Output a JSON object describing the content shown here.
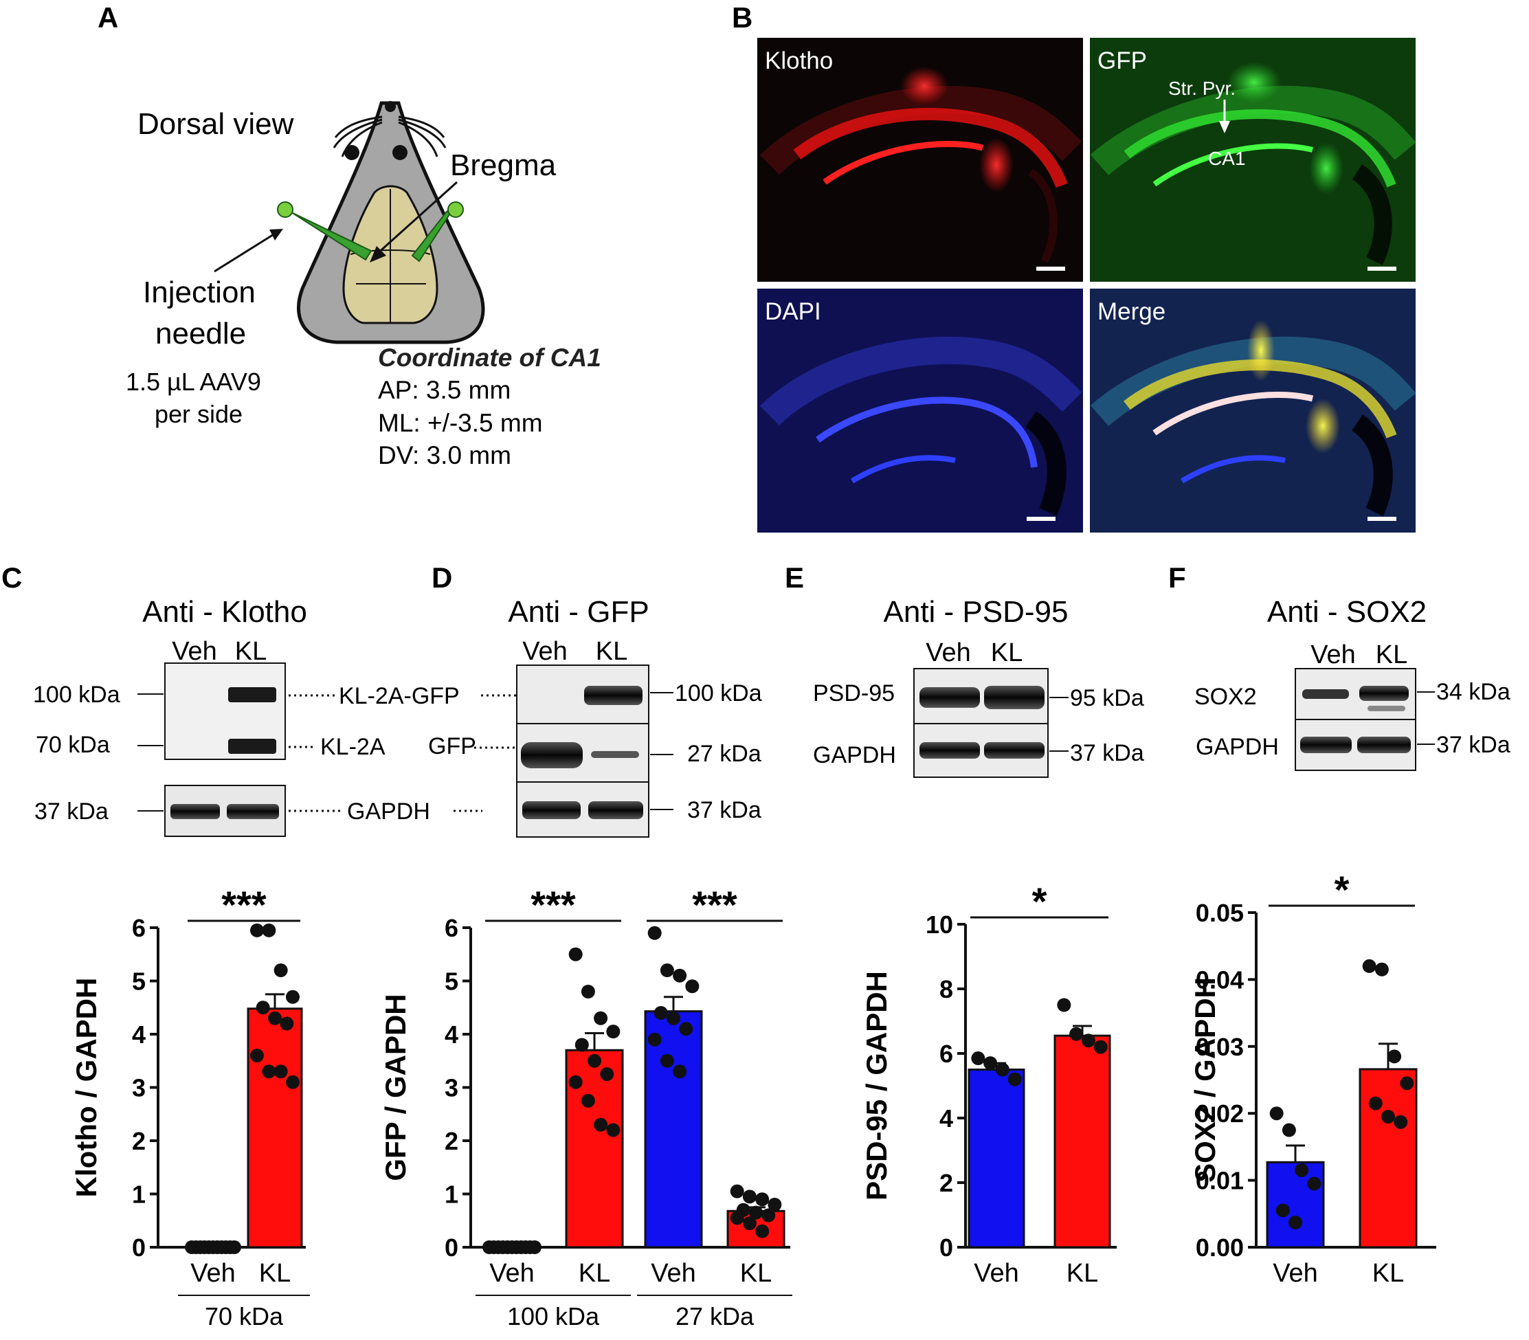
{
  "panel_letters": {
    "a": "A",
    "b": "B",
    "c": "C",
    "d": "D",
    "e": "E",
    "f": "F"
  },
  "panel_a": {
    "dorsal_view": "Dorsal view",
    "bregma": "Bregma",
    "injection": "Injection",
    "needle": "needle",
    "dose_line1": "1.5 µL AAV9",
    "dose_line2": "per side",
    "coord_prefix": "Coordinate of ",
    "coord_ca1": "CA1",
    "ap": "AP: 3.5 mm",
    "ml": "ML: +/-3.5 mm",
    "dv": "DV: 3.0 mm"
  },
  "panel_b": {
    "klotho": "Klotho",
    "gfp": "GFP",
    "dapi": "DAPI",
    "merge": "Merge",
    "str_pyr": "Str. Pyr.",
    "ca1": "CA1",
    "colors": {
      "klotho": "#e01010",
      "gfp": "#2ed42e",
      "dapi": "#1a2ee0",
      "background": "#0a0a0a"
    }
  },
  "blots": {
    "c": {
      "title": "Anti - Klotho",
      "veh": "Veh",
      "kl": "KL",
      "kda100": "100 kDa",
      "kda70": "70 kDa",
      "kda37": "37 kDa",
      "kl2agfp": "KL-2A-GFP",
      "kl2a": "KL-2A",
      "gapdh": "GAPDH"
    },
    "d": {
      "title": "Anti - GFP",
      "veh": "Veh",
      "kl": "KL",
      "gfp": "GFP",
      "kda100": "100 kDa",
      "kda27": "27 kDa",
      "kda37": "37 kDa"
    },
    "e": {
      "title": "Anti - PSD-95",
      "veh": "Veh",
      "kl": "KL",
      "psd95": "PSD-95",
      "gapdh": "GAPDH",
      "kda95": "95 kDa",
      "kda37": "37 kDa"
    },
    "f": {
      "title": "Anti - SOX2",
      "veh": "Veh",
      "kl": "KL",
      "sox2": "SOX2",
      "gapdh": "GAPDH",
      "kda34": "34 kDa",
      "kda37": "37 kDa"
    }
  },
  "colors": {
    "veh": "#1010f0",
    "kl": "#ff0d0d"
  },
  "chart_data": [
    {
      "id": "C",
      "type": "bar",
      "ylabel": "Klotho / GAPDH",
      "ylim": [
        0,
        6
      ],
      "yticks": [
        0,
        1,
        2,
        3,
        4,
        5,
        6
      ],
      "categories": [
        "Veh",
        "KL"
      ],
      "groups": [
        {
          "label": "70 kDa",
          "span": [
            0,
            1
          ]
        }
      ],
      "bar_colors": [
        "kl",
        "kl"
      ],
      "values": [
        0,
        4.48
      ],
      "sem": [
        0,
        0.27
      ],
      "points": [
        [
          0,
          0,
          0,
          0,
          0,
          0,
          0,
          0,
          0,
          0,
          0
        ],
        [
          5.95,
          5.95,
          5.2,
          4.7,
          4.5,
          4.3,
          4.2,
          3.6,
          3.3,
          3.3,
          3.1
        ]
      ],
      "significance": [
        {
          "from": 0,
          "to": 1,
          "label": "***"
        }
      ]
    },
    {
      "id": "D",
      "type": "bar",
      "ylabel": "GFP / GAPDH",
      "ylim": [
        0,
        6
      ],
      "yticks": [
        0,
        1,
        2,
        3,
        4,
        5,
        6
      ],
      "categories": [
        "Veh",
        "KL",
        "Veh",
        "KL"
      ],
      "groups": [
        {
          "label": "100 kDa",
          "span": [
            0,
            1
          ]
        },
        {
          "label": "27 kDa",
          "span": [
            2,
            3
          ]
        }
      ],
      "bar_colors": [
        "kl",
        "kl",
        "veh",
        "kl"
      ],
      "values": [
        0,
        3.7,
        4.43,
        0.68
      ],
      "sem": [
        0,
        0.32,
        0.27,
        0.07
      ],
      "points": [
        [
          0,
          0,
          0,
          0,
          0,
          0,
          0,
          0,
          0,
          0,
          0
        ],
        [
          5.5,
          4.8,
          4.3,
          4.05,
          3.8,
          3.5,
          3.25,
          3.1,
          2.75,
          2.3,
          2.2
        ],
        [
          5.9,
          5.2,
          5.1,
          4.9,
          4.4,
          4.3,
          4.1,
          3.9,
          3.5,
          3.3
        ],
        [
          1.05,
          0.95,
          0.9,
          0.8,
          0.7,
          0.65,
          0.6,
          0.55,
          0.45,
          0.3
        ]
      ],
      "significance": [
        {
          "from": 0,
          "to": 1,
          "label": "***"
        },
        {
          "from": 2,
          "to": 3,
          "label": "***"
        }
      ]
    },
    {
      "id": "E",
      "type": "bar",
      "ylabel": "PSD-95 / GAPDH",
      "ylim": [
        0,
        10
      ],
      "yticks": [
        0,
        2,
        4,
        6,
        8,
        10
      ],
      "categories": [
        "Veh",
        "KL"
      ],
      "groups": [],
      "bar_colors": [
        "veh",
        "kl"
      ],
      "values": [
        5.5,
        6.55
      ],
      "sem": [
        0.2,
        0.3
      ],
      "points": [
        [
          5.85,
          5.7,
          5.5,
          5.2
        ],
        [
          7.5,
          6.6,
          6.4,
          6.2
        ]
      ],
      "significance": [
        {
          "from": 0,
          "to": 1,
          "label": "*"
        }
      ]
    },
    {
      "id": "F",
      "type": "bar",
      "ylabel": "SOX2 / GAPDH",
      "ylim": [
        0,
        0.05
      ],
      "yticks": [
        "0.00",
        "0.01",
        "0.02",
        "0.03",
        "0.04",
        "0.05"
      ],
      "categories": [
        "Veh",
        "KL"
      ],
      "groups": [],
      "bar_colors": [
        "veh",
        "kl"
      ],
      "values": [
        0.0127,
        0.0266
      ],
      "sem": [
        0.0025,
        0.0038
      ],
      "points": [
        [
          0.02,
          0.0175,
          0.0115,
          0.0095,
          0.0055,
          0.0037
        ],
        [
          0.042,
          0.0415,
          0.0285,
          0.0245,
          0.0215,
          0.0195,
          0.0187
        ]
      ],
      "significance": [
        {
          "from": 0,
          "to": 1,
          "label": "*"
        }
      ]
    }
  ]
}
